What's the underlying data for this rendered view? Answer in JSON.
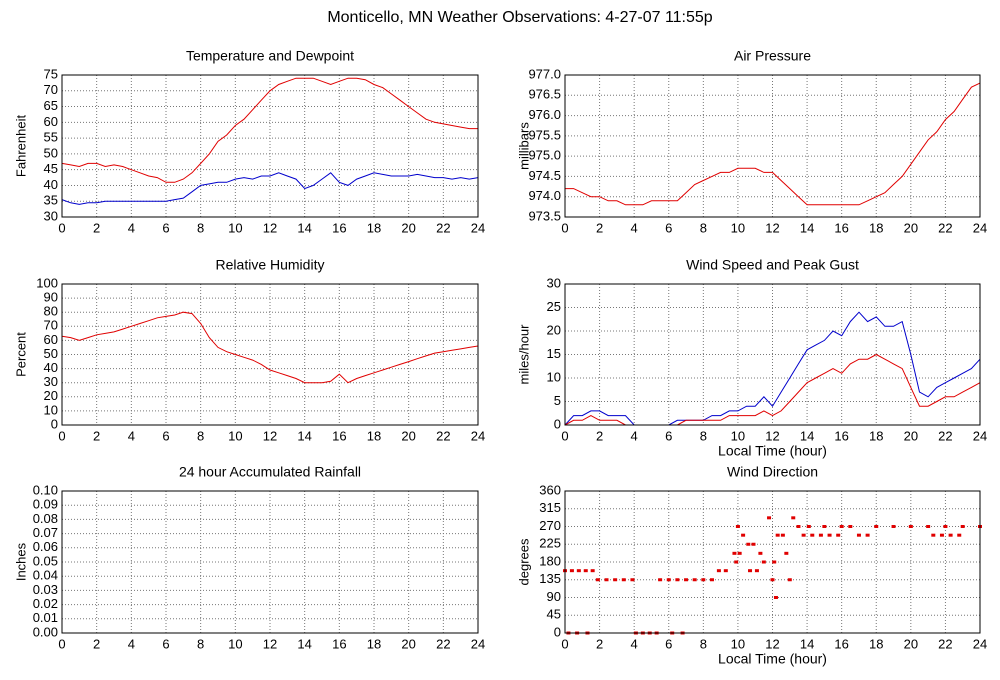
{
  "title": "Monticello, MN Weather Observations: 4-27-07 11:55p",
  "chart_data": [
    {
      "type": "line",
      "title": "Temperature and Dewpoint",
      "y_label": "Fahrenheit",
      "x": [
        0,
        0.5,
        1,
        1.5,
        2,
        2.5,
        3,
        3.5,
        4,
        4.5,
        5,
        5.5,
        6,
        6.5,
        7,
        7.5,
        8,
        8.5,
        9,
        9.5,
        10,
        10.5,
        11,
        11.5,
        12,
        12.5,
        13,
        13.5,
        14,
        14.5,
        15,
        15.5,
        16,
        16.5,
        17,
        17.5,
        18,
        18.5,
        19,
        19.5,
        20,
        20.5,
        21,
        21.5,
        22,
        22.5,
        23,
        23.5,
        24
      ],
      "series": [
        {
          "color": "#e00000",
          "values": [
            47,
            46.5,
            46,
            47,
            47,
            46,
            46.5,
            46,
            45,
            44,
            43,
            42.5,
            41,
            41,
            42,
            44,
            47,
            50,
            54,
            56,
            59,
            61,
            64,
            67,
            70,
            72,
            73,
            74,
            74,
            74,
            73,
            72,
            73,
            74,
            74,
            73.5,
            72,
            71,
            69,
            67,
            65,
            63,
            61,
            60,
            59.5,
            59,
            58.5,
            58,
            58
          ]
        },
        {
          "color": "#0000cc",
          "values": [
            35.5,
            34.5,
            34,
            34.5,
            34.5,
            35,
            35,
            35,
            35,
            35,
            35,
            35,
            35,
            35.5,
            36,
            38,
            40,
            40.5,
            41,
            41,
            42,
            42.5,
            42,
            43,
            43,
            44,
            43,
            42,
            39,
            40,
            42,
            44,
            41,
            40,
            42,
            43,
            44,
            43.5,
            43,
            43,
            43,
            43.5,
            43,
            42.5,
            42.5,
            42,
            42.5,
            42,
            42.5
          ]
        }
      ],
      "xlim": [
        0,
        24
      ],
      "xticks": [
        0,
        2,
        4,
        6,
        8,
        10,
        12,
        14,
        16,
        18,
        20,
        22,
        24
      ],
      "ylim": [
        30,
        75
      ],
      "yticks": [
        30,
        35,
        40,
        45,
        50,
        55,
        60,
        65,
        70,
        75
      ],
      "grid": true
    },
    {
      "type": "line",
      "title": "Air Pressure",
      "y_label": "millibars",
      "x": [
        0,
        0.5,
        1,
        1.5,
        2,
        2.5,
        3,
        3.5,
        4,
        4.5,
        5,
        5.5,
        6,
        6.5,
        7,
        7.5,
        8,
        8.5,
        9,
        9.5,
        10,
        10.5,
        11,
        11.5,
        12,
        12.5,
        13,
        13.5,
        14,
        14.5,
        15,
        15.5,
        16,
        16.5,
        17,
        17.5,
        18,
        18.5,
        19,
        19.5,
        20,
        20.5,
        21,
        21.5,
        22,
        22.5,
        23,
        23.5,
        24
      ],
      "series": [
        {
          "color": "#e00000",
          "values": [
            974.2,
            974.2,
            974.1,
            974.0,
            974.0,
            973.9,
            973.9,
            973.8,
            973.8,
            973.8,
            973.9,
            973.9,
            973.9,
            973.9,
            974.1,
            974.3,
            974.4,
            974.5,
            974.6,
            974.6,
            974.7,
            974.7,
            974.7,
            974.6,
            974.6,
            974.4,
            974.2,
            974.0,
            973.8,
            973.8,
            973.8,
            973.8,
            973.8,
            973.8,
            973.8,
            973.9,
            974.0,
            974.1,
            974.3,
            974.5,
            974.8,
            975.1,
            975.4,
            975.6,
            975.9,
            976.1,
            976.4,
            976.7,
            976.8
          ]
        }
      ],
      "xlim": [
        0,
        24
      ],
      "xticks": [
        0,
        2,
        4,
        6,
        8,
        10,
        12,
        14,
        16,
        18,
        20,
        22,
        24
      ],
      "ylim": [
        973.5,
        977
      ],
      "yticks": [
        973.5,
        {
          "value": 974,
          "label": "974.0"
        },
        974.5,
        {
          "value": 975,
          "label": "975.0"
        },
        975.5,
        {
          "value": 976,
          "label": "976.0"
        },
        976.5,
        {
          "value": 977,
          "label": "977.0"
        }
      ],
      "grid": true
    },
    {
      "type": "line",
      "title": "Relative Humidity",
      "y_label": "Percent",
      "x": [
        0,
        0.5,
        1,
        1.5,
        2,
        2.5,
        3,
        3.5,
        4,
        4.5,
        5,
        5.5,
        6,
        6.5,
        7,
        7.5,
        8,
        8.5,
        9,
        9.5,
        10,
        10.5,
        11,
        11.5,
        12,
        12.5,
        13,
        13.5,
        14,
        14.5,
        15,
        15.5,
        16,
        16.5,
        17,
        17.5,
        18,
        18.5,
        19,
        19.5,
        20,
        20.5,
        21,
        21.5,
        22,
        22.5,
        23,
        23.5,
        24
      ],
      "series": [
        {
          "color": "#e00000",
          "values": [
            63,
            62,
            60,
            62,
            64,
            65,
            66,
            68,
            70,
            72,
            74,
            76,
            77,
            78,
            80,
            79,
            72,
            62,
            55,
            52,
            50,
            48,
            46,
            43,
            39,
            37,
            35,
            33,
            30,
            30,
            30,
            31,
            36,
            30,
            33,
            35,
            37,
            39,
            41,
            43,
            45,
            47,
            49,
            51,
            52,
            53,
            54,
            55,
            56
          ]
        }
      ],
      "xlim": [
        0,
        24
      ],
      "xticks": [
        0,
        2,
        4,
        6,
        8,
        10,
        12,
        14,
        16,
        18,
        20,
        22,
        24
      ],
      "ylim": [
        0,
        100
      ],
      "yticks": [
        0,
        10,
        20,
        30,
        40,
        50,
        60,
        70,
        80,
        90,
        100
      ],
      "grid": true
    },
    {
      "type": "line",
      "title": "Wind Speed and Peak Gust",
      "y_label": "miles/hour",
      "x_label": "Local Time (hour)",
      "x": [
        0,
        0.5,
        1,
        1.5,
        2,
        2.5,
        3,
        3.5,
        4,
        4.5,
        5,
        5.5,
        6,
        6.5,
        7,
        7.5,
        8,
        8.5,
        9,
        9.5,
        10,
        10.5,
        11,
        11.5,
        12,
        12.5,
        13,
        13.5,
        14,
        14.5,
        15,
        15.5,
        16,
        16.5,
        17,
        17.5,
        18,
        18.5,
        19,
        19.5,
        20,
        20.5,
        21,
        21.5,
        22,
        22.5,
        23,
        23.5,
        24
      ],
      "series": [
        {
          "color": "#0000cc",
          "values": [
            0,
            2,
            2,
            3,
            3,
            2,
            2,
            2,
            0,
            0,
            0,
            0,
            0,
            1,
            1,
            1,
            1,
            2,
            2,
            3,
            3,
            4,
            4,
            6,
            4,
            7,
            10,
            13,
            16,
            17,
            18,
            20,
            19,
            22,
            24,
            22,
            23,
            21,
            21,
            22,
            15,
            7,
            6,
            8,
            9,
            10,
            11,
            12,
            14
          ]
        },
        {
          "color": "#e00000",
          "values": [
            0,
            1,
            1,
            2,
            1,
            1,
            1,
            0,
            0,
            0,
            0,
            0,
            0,
            0,
            1,
            1,
            1,
            1,
            1,
            2,
            2,
            2,
            2,
            3,
            2,
            3,
            5,
            7,
            9,
            10,
            11,
            12,
            11,
            13,
            14,
            14,
            15,
            14,
            13,
            12,
            8,
            4,
            4,
            5,
            6,
            6,
            7,
            8,
            9
          ]
        }
      ],
      "xlim": [
        0,
        24
      ],
      "xticks": [
        0,
        2,
        4,
        6,
        8,
        10,
        12,
        14,
        16,
        18,
        20,
        22,
        24
      ],
      "ylim": [
        0,
        30
      ],
      "yticks": [
        0,
        5,
        10,
        15,
        20,
        25,
        30
      ],
      "grid": true
    },
    {
      "type": "line",
      "title": "24 hour Accumulated Rainfall",
      "y_label": "Inches",
      "x": [
        0,
        24
      ],
      "series": [
        {
          "color": "#e00000",
          "values": [
            0,
            0
          ]
        }
      ],
      "xlim": [
        0,
        24
      ],
      "xticks": [
        0,
        2,
        4,
        6,
        8,
        10,
        12,
        14,
        16,
        18,
        20,
        22,
        24
      ],
      "ylim": [
        0,
        0.1
      ],
      "yticks": [
        {
          "value": 0,
          "label": "0.00"
        },
        0.01,
        0.02,
        0.03,
        0.04,
        0.05,
        0.06,
        0.07,
        0.08,
        0.09,
        {
          "value": 0.1,
          "label": "0.10"
        }
      ],
      "grid": true
    },
    {
      "type": "scatter",
      "title": "Wind Direction",
      "y_label": "degrees",
      "x_label": "Local Time (hour)",
      "x": [
        0,
        0.4,
        0.8,
        1.2,
        1.6,
        0.2,
        0.7,
        1.3,
        1.9,
        2.4,
        2.9,
        3.4,
        3.9,
        4.1,
        4.5,
        4.9,
        5.3,
        6.2,
        6.8,
        5.5,
        6,
        6.5,
        7,
        7.5,
        8,
        8.5,
        8.9,
        9.3,
        9.8,
        10.1,
        9.9,
        10,
        10.3,
        10.6,
        10.9,
        10.7,
        11.1,
        11.3,
        11.5,
        11.8,
        12.1,
        12,
        12.2,
        12.3,
        12.6,
        12.8,
        13,
        13.2,
        13.5,
        13.8,
        14.3,
        14.8,
        15.3,
        15.8,
        14.1,
        15,
        16,
        16.5,
        17,
        17.5,
        18,
        19,
        20,
        21,
        21.3,
        21.8,
        22.3,
        22.8,
        22,
        23,
        24
      ],
      "series": [
        {
          "color": "#e00000",
          "values": [
            158,
            158,
            158,
            158,
            158,
            0,
            0,
            0,
            135,
            135,
            135,
            135,
            135,
            0,
            0,
            0,
            0,
            0,
            0,
            135,
            135,
            135,
            135,
            135,
            135,
            135,
            158,
            158,
            202,
            202,
            180,
            270,
            248,
            225,
            225,
            158,
            158,
            202,
            180,
            292,
            180,
            135,
            90,
            248,
            248,
            202,
            135,
            292,
            270,
            248,
            248,
            248,
            248,
            248,
            270,
            270,
            270,
            270,
            248,
            248,
            270,
            270,
            270,
            270,
            248,
            248,
            248,
            248,
            270,
            270,
            270
          ]
        }
      ],
      "xlim": [
        0,
        24
      ],
      "xticks": [
        0,
        2,
        4,
        6,
        8,
        10,
        12,
        14,
        16,
        18,
        20,
        22,
        24
      ],
      "ylim": [
        0,
        360
      ],
      "yticks": [
        0,
        45,
        90,
        135,
        180,
        225,
        270,
        315,
        360
      ],
      "grid": true
    }
  ]
}
